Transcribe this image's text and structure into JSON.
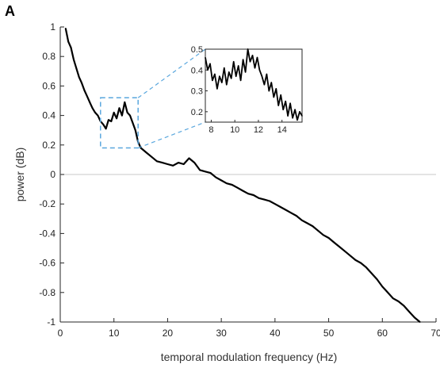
{
  "panel_label": "A",
  "chart_data": {
    "type": "line",
    "title": "",
    "xlabel": "temporal modulation frequency (Hz)",
    "ylabel": "power (dB)",
    "xlim": [
      0,
      70
    ],
    "ylim": [
      -1,
      1
    ],
    "xticks": [
      0,
      10,
      20,
      30,
      40,
      50,
      60,
      70
    ],
    "yticks": [
      1,
      0.8,
      0.6,
      0.4,
      0.2,
      0,
      -0.2,
      -0.4,
      -0.6,
      -0.8,
      -1
    ],
    "ytick_labels": [
      "1",
      "0.8",
      "0.6",
      "0.4",
      "0.2",
      "0",
      "-0.2",
      "-0.4",
      "-0.6",
      "-0.8",
      "-1"
    ],
    "zero_line": true,
    "grid": false,
    "series": [
      {
        "color": "#000000",
        "x": [
          1,
          1.5,
          2,
          2.5,
          3,
          3.5,
          4,
          4.5,
          5,
          5.5,
          6,
          6.5,
          7,
          7.5,
          8,
          8.5,
          9,
          9.5,
          10,
          10.5,
          11,
          11.5,
          12,
          12.5,
          13,
          13.5,
          14,
          14.5,
          15,
          16,
          17,
          18,
          19,
          20,
          21,
          22,
          23,
          24,
          25,
          26,
          27,
          28,
          29,
          30,
          31,
          32,
          33,
          34,
          35,
          36,
          37,
          38,
          39,
          40,
          41,
          42,
          43,
          44,
          45,
          46,
          47,
          48,
          49,
          50,
          51,
          52,
          53,
          54,
          55,
          56,
          57,
          58,
          59,
          60,
          61,
          62,
          63,
          64,
          65,
          66,
          67
        ],
        "y": [
          0.99,
          0.9,
          0.86,
          0.78,
          0.72,
          0.66,
          0.62,
          0.57,
          0.53,
          0.49,
          0.45,
          0.42,
          0.4,
          0.36,
          0.34,
          0.31,
          0.37,
          0.36,
          0.42,
          0.38,
          0.45,
          0.4,
          0.49,
          0.42,
          0.4,
          0.35,
          0.3,
          0.22,
          0.18,
          0.15,
          0.12,
          0.09,
          0.08,
          0.07,
          0.06,
          0.08,
          0.07,
          0.11,
          0.08,
          0.03,
          0.02,
          0.01,
          -0.02,
          -0.04,
          -0.06,
          -0.07,
          -0.09,
          -0.11,
          -0.13,
          -0.14,
          -0.16,
          -0.17,
          -0.18,
          -0.2,
          -0.22,
          -0.24,
          -0.26,
          -0.28,
          -0.31,
          -0.33,
          -0.35,
          -0.38,
          -0.41,
          -0.43,
          -0.46,
          -0.49,
          -0.52,
          -0.55,
          -0.58,
          -0.6,
          -0.63,
          -0.67,
          -0.71,
          -0.76,
          -0.8,
          -0.84,
          -0.86,
          -0.89,
          -0.93,
          -0.97,
          -1.0
        ]
      }
    ],
    "highlight_box": {
      "x_range": [
        7.5,
        14.5
      ],
      "y_range": [
        0.18,
        0.52
      ],
      "color": "#5aa7de"
    },
    "inset": {
      "xlim": [
        7.5,
        15.7
      ],
      "ylim": [
        0.15,
        0.5
      ],
      "xticks": [
        8,
        10,
        12,
        14
      ],
      "yticks": [
        0.5,
        0.4,
        0.3,
        0.2
      ],
      "ytick_labels": [
        "0.5",
        "0.4",
        "0.3",
        "0.2"
      ],
      "series": {
        "x": [
          7.5,
          7.7,
          7.9,
          8.1,
          8.3,
          8.5,
          8.7,
          8.9,
          9.1,
          9.3,
          9.5,
          9.7,
          9.9,
          10.1,
          10.3,
          10.5,
          10.7,
          10.9,
          11.1,
          11.3,
          11.5,
          11.7,
          11.9,
          12.1,
          12.3,
          12.5,
          12.7,
          12.9,
          13.1,
          13.3,
          13.5,
          13.7,
          13.9,
          14.1,
          14.3,
          14.5,
          14.7,
          14.9,
          15.1,
          15.3,
          15.5,
          15.7
        ],
        "y": [
          0.46,
          0.4,
          0.43,
          0.35,
          0.38,
          0.31,
          0.37,
          0.34,
          0.41,
          0.33,
          0.39,
          0.36,
          0.44,
          0.37,
          0.42,
          0.35,
          0.45,
          0.39,
          0.5,
          0.44,
          0.47,
          0.41,
          0.46,
          0.4,
          0.37,
          0.33,
          0.38,
          0.3,
          0.34,
          0.27,
          0.31,
          0.23,
          0.28,
          0.21,
          0.25,
          0.18,
          0.24,
          0.17,
          0.21,
          0.16,
          0.2,
          0.18
        ]
      }
    }
  }
}
